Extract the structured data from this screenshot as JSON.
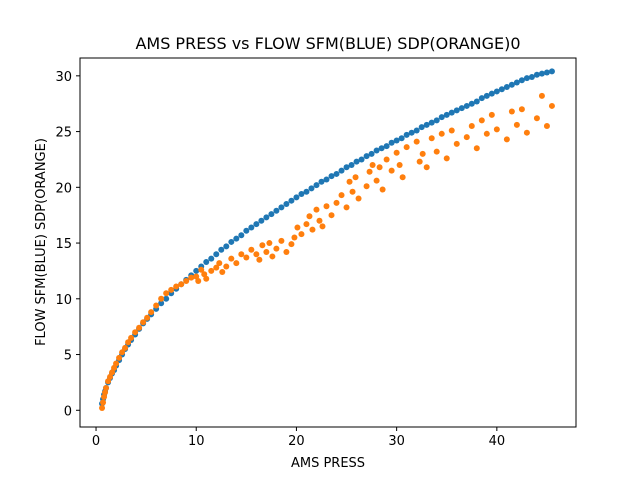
{
  "chart_data": {
    "type": "scatter",
    "title": "AMS PRESS vs FLOW SFM(BLUE) SDP(ORANGE)0",
    "xlabel": "AMS PRESS",
    "ylabel": "FLOW SFM(BLUE) SDP(ORANGE)",
    "xlim": [
      -1.6,
      47.9
    ],
    "ylim": [
      -1.5,
      31.6
    ],
    "xticks": [
      0,
      10,
      20,
      30,
      40
    ],
    "yticks": [
      0,
      5,
      10,
      15,
      20,
      25,
      30
    ],
    "grid": false,
    "legend": "none",
    "series": [
      {
        "color": "#1f77b4",
        "x": [
          0.6,
          0.7,
          0.8,
          0.9,
          1.0,
          1.2,
          1.4,
          1.6,
          1.8,
          2.0,
          2.3,
          2.6,
          2.9,
          3.2,
          3.5,
          3.9,
          4.3,
          4.7,
          5.1,
          5.5,
          6.0,
          6.5,
          7.0,
          7.5,
          8.0,
          8.5,
          9.0,
          9.5,
          10.0,
          10.5,
          11.0,
          11.5,
          12.0,
          12.5,
          13.0,
          13.5,
          14.0,
          14.5,
          15.0,
          15.5,
          16.0,
          16.5,
          17.0,
          17.5,
          18.0,
          18.5,
          19.0,
          19.5,
          20.0,
          20.5,
          21.0,
          21.5,
          22.0,
          22.5,
          23.0,
          23.5,
          24.0,
          24.5,
          25.0,
          25.5,
          26.0,
          26.5,
          27.0,
          27.5,
          28.0,
          28.5,
          29.0,
          29.5,
          30.0,
          30.5,
          31.0,
          31.5,
          32.0,
          32.5,
          33.0,
          33.5,
          34.0,
          34.5,
          35.0,
          35.5,
          36.0,
          36.5,
          37.0,
          37.5,
          38.0,
          38.5,
          39.0,
          39.5,
          40.0,
          40.5,
          41.0,
          41.5,
          42.0,
          42.5,
          43.0,
          43.5,
          44.0,
          44.5,
          45.0,
          45.5
        ],
        "y": [
          0.6,
          1.0,
          1.4,
          1.7,
          2.0,
          2.5,
          2.9,
          3.3,
          3.6,
          4.0,
          4.5,
          5.0,
          5.5,
          5.9,
          6.3,
          6.8,
          7.3,
          7.8,
          8.2,
          8.6,
          9.1,
          9.6,
          10.0,
          10.5,
          10.9,
          11.3,
          11.7,
          12.1,
          12.5,
          12.9,
          13.3,
          13.6,
          14.0,
          14.4,
          14.7,
          15.1,
          15.4,
          15.7,
          16.1,
          16.4,
          16.7,
          17.0,
          17.3,
          17.6,
          17.9,
          18.2,
          18.5,
          18.8,
          19.1,
          19.4,
          19.6,
          19.9,
          20.2,
          20.5,
          20.7,
          21.0,
          21.2,
          21.5,
          21.8,
          22.0,
          22.3,
          22.5,
          22.8,
          23.0,
          23.3,
          23.5,
          23.7,
          24.0,
          24.2,
          24.4,
          24.7,
          24.9,
          25.1,
          25.4,
          25.6,
          25.8,
          26.0,
          26.3,
          26.5,
          26.7,
          26.9,
          27.1,
          27.3,
          27.5,
          27.7,
          28.0,
          28.2,
          28.4,
          28.6,
          28.8,
          29.0,
          29.2,
          29.4,
          29.6,
          29.8,
          29.9,
          30.1,
          30.2,
          30.3,
          30.4
        ]
      },
      {
        "color": "#ff7f0e",
        "x": [
          0.6,
          0.7,
          0.8,
          0.9,
          1.0,
          1.2,
          1.4,
          1.6,
          1.8,
          2.0,
          2.3,
          2.6,
          2.9,
          3.2,
          3.5,
          3.9,
          4.3,
          4.7,
          5.1,
          5.5,
          6.0,
          6.5,
          7.0,
          7.5,
          8.0,
          8.5,
          9.0,
          9.5,
          10.0,
          10.2,
          10.5,
          10.8,
          11.0,
          11.5,
          12.0,
          12.3,
          12.6,
          13.0,
          13.5,
          14.0,
          14.5,
          15.0,
          15.5,
          16.0,
          16.3,
          16.6,
          17.0,
          17.3,
          17.6,
          18.0,
          18.5,
          19.0,
          19.5,
          19.8,
          20.1,
          20.5,
          21.0,
          21.3,
          21.6,
          22.0,
          22.3,
          22.6,
          23.0,
          23.5,
          24.0,
          24.5,
          25.0,
          25.3,
          25.6,
          25.9,
          26.2,
          27.0,
          27.3,
          27.6,
          28.0,
          28.3,
          28.6,
          29.0,
          29.5,
          30.0,
          30.3,
          30.6,
          31.0,
          32.0,
          32.3,
          32.6,
          33.0,
          33.5,
          34.0,
          34.5,
          35.0,
          35.5,
          36.0,
          37.0,
          37.5,
          38.0,
          38.5,
          39.0,
          39.5,
          40.0,
          41.0,
          41.5,
          42.0,
          42.5,
          43.0,
          44.0,
          44.5,
          45.0,
          45.5
        ],
        "y": [
          0.2,
          0.7,
          1.2,
          1.6,
          2.0,
          2.6,
          3.0,
          3.4,
          3.8,
          4.2,
          4.7,
          5.2,
          5.6,
          6.1,
          6.5,
          7.0,
          7.4,
          7.9,
          8.3,
          8.8,
          9.4,
          10.0,
          10.5,
          10.8,
          11.1,
          11.3,
          11.6,
          11.9,
          12.0,
          11.6,
          12.6,
          12.2,
          11.8,
          12.5,
          12.8,
          13.2,
          12.4,
          12.9,
          13.6,
          13.2,
          14.0,
          13.7,
          14.4,
          14.0,
          13.5,
          14.8,
          14.2,
          15.0,
          13.8,
          14.5,
          15.2,
          14.2,
          14.9,
          15.5,
          16.4,
          15.8,
          16.7,
          17.4,
          16.2,
          18.0,
          17.0,
          16.5,
          18.3,
          17.5,
          18.6,
          19.3,
          18.2,
          20.5,
          19.6,
          20.9,
          19.0,
          20.1,
          21.4,
          22.0,
          20.6,
          21.8,
          19.8,
          22.5,
          21.5,
          23.1,
          22.0,
          20.9,
          23.6,
          24.1,
          22.3,
          23.0,
          21.8,
          24.4,
          23.2,
          24.8,
          22.6,
          25.1,
          23.9,
          24.5,
          25.5,
          23.5,
          26.0,
          24.8,
          26.5,
          25.2,
          24.3,
          26.8,
          25.6,
          27.0,
          24.9,
          26.2,
          28.2,
          25.5,
          27.3
        ]
      }
    ]
  }
}
